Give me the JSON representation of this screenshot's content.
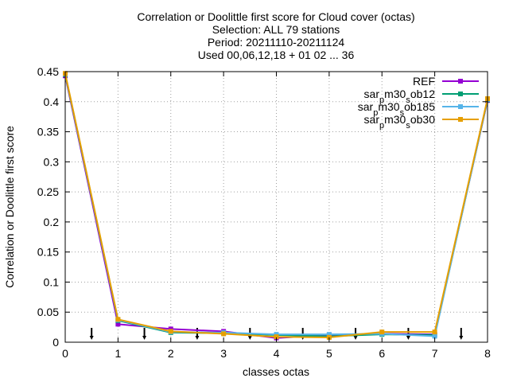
{
  "chart_data": {
    "type": "line",
    "title_lines": [
      "Correlation or Doolittle first score  for Cloud cover (octas)",
      "Selection: ALL     79 stations",
      "Period: 20211110-20211124",
      "Used 00,06,12,18 + 01 02 ... 36"
    ],
    "xlabel": "classes octas",
    "ylabel": "Correlation or Doolittle first score",
    "xlim": [
      0,
      8
    ],
    "ylim": [
      0,
      0.45
    ],
    "x_ticks": [
      "0",
      "1",
      "2",
      "3",
      "4",
      "5",
      "6",
      "7",
      "8"
    ],
    "y_ticks": [
      "0",
      "0.05",
      "0.1",
      "0.15",
      "0.2",
      "0.25",
      "0.3",
      "0.35",
      "0.4",
      "0.45"
    ],
    "grid": true,
    "legend_position": "top-right",
    "x": [
      0,
      1,
      2,
      3,
      4,
      5,
      6,
      7,
      8
    ],
    "series": [
      {
        "name": "REF",
        "color": "#9400d3",
        "values": [
          0.443,
          0.03,
          0.022,
          0.018,
          0.007,
          0.012,
          0.014,
          0.013,
          0.402
        ]
      },
      {
        "name": "sar_pm30_sob12",
        "name_parts": [
          [
            "sar",
            ""
          ],
          [
            "p",
            "sub"
          ],
          [
            "m30",
            ""
          ],
          [
            "s",
            "sub"
          ],
          [
            "ob12",
            ""
          ]
        ],
        "color": "#009e73",
        "values": [
          0.445,
          0.036,
          0.016,
          0.015,
          0.012,
          0.01,
          0.013,
          0.012,
          0.403
        ]
      },
      {
        "name": "sar_pm30_sob185",
        "name_parts": [
          [
            "sar",
            ""
          ],
          [
            "p",
            "sub"
          ],
          [
            "m30",
            ""
          ],
          [
            "s",
            "sub"
          ],
          [
            "ob185",
            ""
          ]
        ],
        "color": "#56b4e9",
        "values": [
          0.446,
          0.037,
          0.017,
          0.016,
          0.013,
          0.013,
          0.014,
          0.01,
          0.404
        ]
      },
      {
        "name": "sar_pm30_sob30",
        "name_parts": [
          [
            "sar",
            ""
          ],
          [
            "p",
            "sub"
          ],
          [
            "m30",
            ""
          ],
          [
            "s",
            "sub"
          ],
          [
            "ob30",
            ""
          ]
        ],
        "color": "#e69f00",
        "values": [
          0.447,
          0.038,
          0.018,
          0.014,
          0.009,
          0.008,
          0.017,
          0.017,
          0.405
        ]
      }
    ],
    "arrows_x": [
      0.5,
      1.5,
      2.5,
      3.5,
      4.5,
      5.5,
      6.5,
      7.5
    ]
  }
}
